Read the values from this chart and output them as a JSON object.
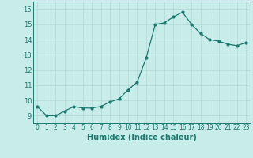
{
  "x": [
    0,
    1,
    2,
    3,
    4,
    5,
    6,
    7,
    8,
    9,
    10,
    11,
    12,
    13,
    14,
    15,
    16,
    17,
    18,
    19,
    20,
    21,
    22,
    23
  ],
  "y": [
    9.6,
    9.0,
    9.0,
    9.3,
    9.6,
    9.5,
    9.5,
    9.6,
    9.9,
    10.1,
    10.7,
    11.2,
    12.8,
    15.0,
    15.1,
    15.5,
    15.8,
    15.0,
    14.4,
    14.0,
    13.9,
    13.7,
    13.6,
    13.8
  ],
  "line_color": "#1a7a6e",
  "bg_color": "#c8ecea",
  "grid_color": "#b0d8d4",
  "xlabel": "Humidex (Indice chaleur)",
  "ylim": [
    8.5,
    16.5
  ],
  "xlim": [
    -0.5,
    23.5
  ],
  "yticks": [
    9,
    10,
    11,
    12,
    13,
    14,
    15,
    16
  ],
  "xticks": [
    0,
    1,
    2,
    3,
    4,
    5,
    6,
    7,
    8,
    9,
    10,
    11,
    12,
    13,
    14,
    15,
    16,
    17,
    18,
    19,
    20,
    21,
    22,
    23
  ],
  "xlabel_fontsize": 7,
  "tick_fontsize": 5.5,
  "ytick_fontsize": 6
}
